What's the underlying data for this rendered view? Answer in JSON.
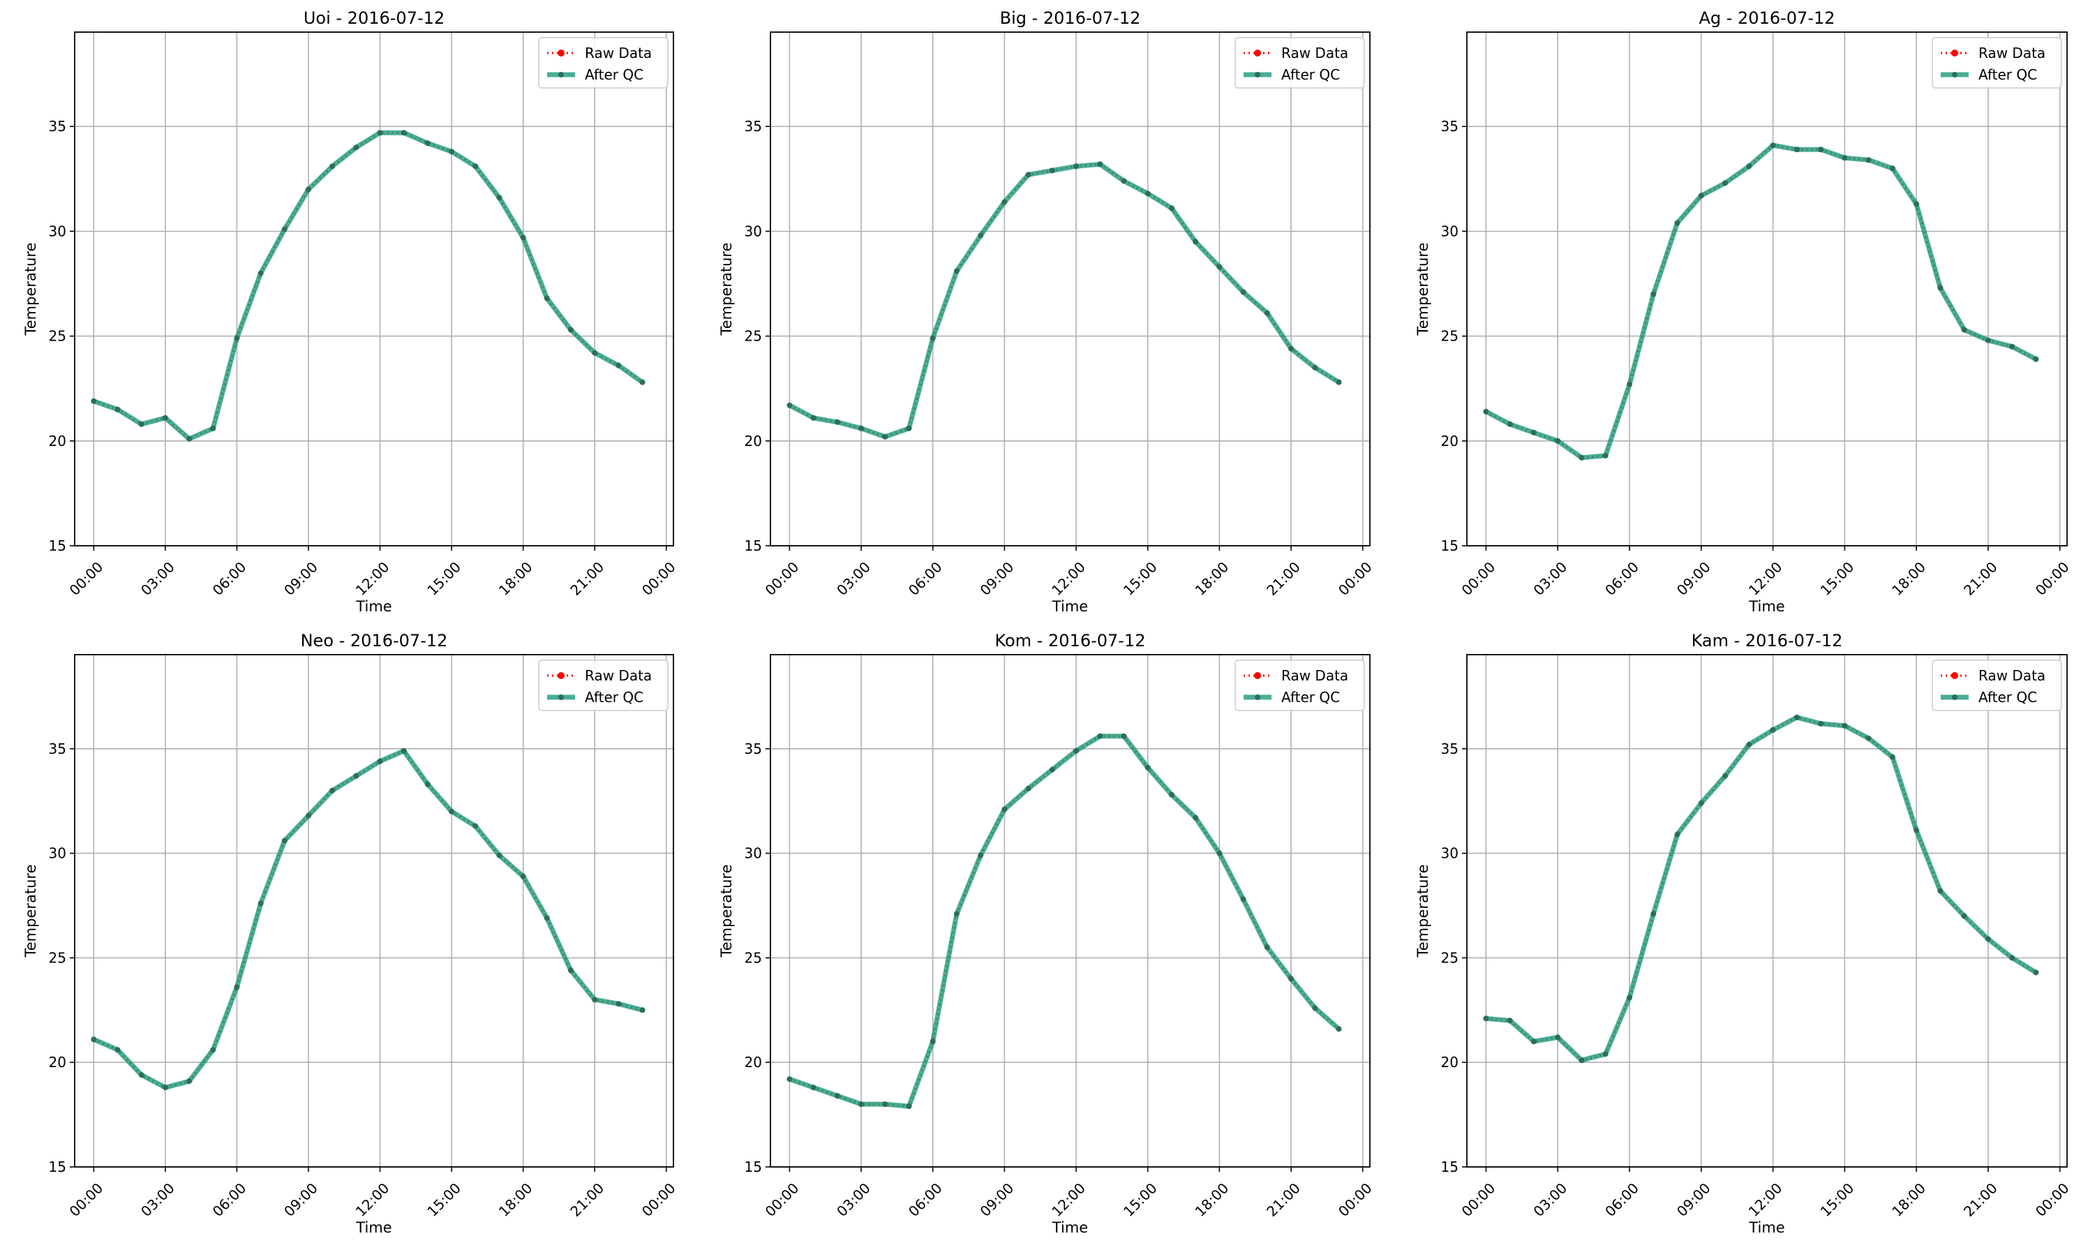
{
  "legend": {
    "raw_label": "Raw Data",
    "qc_label": "After QC"
  },
  "colors": {
    "raw": "#ff0000",
    "qc": "#1a9a7a",
    "qc_marker": "#2c6e5a",
    "grid": "#b0b0b0"
  },
  "chart_data": [
    {
      "type": "line",
      "title": "Uoi - 2016-07-12",
      "xlabel": "Time",
      "ylabel": "Temperature",
      "x": [
        0,
        1,
        2,
        3,
        4,
        5,
        6,
        7,
        8,
        9,
        10,
        11,
        12,
        13,
        14,
        15,
        16,
        17,
        18,
        19,
        20,
        21,
        22,
        23
      ],
      "xticks": [
        "00:00",
        "03:00",
        "06:00",
        "09:00",
        "12:00",
        "15:00",
        "18:00",
        "21:00",
        "00:00"
      ],
      "yticks": [
        "15",
        "20",
        "25",
        "30",
        "35"
      ],
      "ylim": [
        15,
        39.5
      ],
      "xlim": [
        -0.8,
        24.3
      ],
      "grid": true,
      "legend_position": "top-right",
      "series": [
        {
          "name": "Raw Data",
          "values": [
            21.9,
            21.5,
            20.8,
            21.1,
            20.1,
            20.6,
            24.9,
            28.0,
            30.1,
            32.0,
            33.1,
            34.0,
            34.7,
            34.7,
            34.2,
            33.8,
            33.1,
            31.6,
            29.7,
            26.8,
            25.3,
            24.2,
            23.6,
            22.8
          ]
        },
        {
          "name": "After QC",
          "values": [
            21.9,
            21.5,
            20.8,
            21.1,
            20.1,
            20.6,
            24.9,
            28.0,
            30.1,
            32.0,
            33.1,
            34.0,
            34.7,
            34.7,
            34.2,
            33.8,
            33.1,
            31.6,
            29.7,
            26.8,
            25.3,
            24.2,
            23.6,
            22.8
          ]
        }
      ]
    },
    {
      "type": "line",
      "title": "Big - 2016-07-12",
      "xlabel": "Time",
      "ylabel": "Temperature",
      "x": [
        0,
        1,
        2,
        3,
        4,
        5,
        6,
        7,
        8,
        9,
        10,
        11,
        12,
        13,
        14,
        15,
        16,
        17,
        18,
        19,
        20,
        21,
        22,
        23
      ],
      "xticks": [
        "00:00",
        "03:00",
        "06:00",
        "09:00",
        "12:00",
        "15:00",
        "18:00",
        "21:00",
        "00:00"
      ],
      "yticks": [
        "15",
        "20",
        "25",
        "30",
        "35"
      ],
      "ylim": [
        15,
        39.5
      ],
      "xlim": [
        -0.8,
        24.3
      ],
      "grid": true,
      "legend_position": "top-right",
      "series": [
        {
          "name": "Raw Data",
          "values": [
            21.7,
            21.1,
            20.9,
            20.6,
            20.2,
            20.6,
            24.9,
            28.1,
            29.8,
            31.4,
            32.7,
            32.9,
            33.1,
            33.2,
            32.4,
            31.8,
            31.1,
            29.5,
            28.3,
            27.1,
            26.1,
            24.4,
            23.5,
            22.8
          ]
        },
        {
          "name": "After QC",
          "values": [
            21.7,
            21.1,
            20.9,
            20.6,
            20.2,
            20.6,
            24.9,
            28.1,
            29.8,
            31.4,
            32.7,
            32.9,
            33.1,
            33.2,
            32.4,
            31.8,
            31.1,
            29.5,
            28.3,
            27.1,
            26.1,
            24.4,
            23.5,
            22.8
          ]
        }
      ]
    },
    {
      "type": "line",
      "title": "Ag - 2016-07-12",
      "xlabel": "Time",
      "ylabel": "Temperature",
      "x": [
        0,
        1,
        2,
        3,
        4,
        5,
        6,
        7,
        8,
        9,
        10,
        11,
        12,
        13,
        14,
        15,
        16,
        17,
        18,
        19,
        20,
        21,
        22,
        23
      ],
      "xticks": [
        "00:00",
        "03:00",
        "06:00",
        "09:00",
        "12:00",
        "15:00",
        "18:00",
        "21:00",
        "00:00"
      ],
      "yticks": [
        "15",
        "20",
        "25",
        "30",
        "35"
      ],
      "ylim": [
        15,
        39.5
      ],
      "xlim": [
        -0.8,
        24.3
      ],
      "grid": true,
      "legend_position": "top-right",
      "series": [
        {
          "name": "Raw Data",
          "values": [
            21.4,
            20.8,
            20.4,
            20.0,
            19.2,
            19.3,
            22.7,
            27.0,
            30.4,
            31.7,
            32.3,
            33.1,
            34.1,
            33.9,
            33.9,
            33.5,
            33.4,
            33.0,
            31.3,
            27.3,
            25.3,
            24.8,
            24.5,
            23.9
          ]
        },
        {
          "name": "After QC",
          "values": [
            21.4,
            20.8,
            20.4,
            20.0,
            19.2,
            19.3,
            22.7,
            27.0,
            30.4,
            31.7,
            32.3,
            33.1,
            34.1,
            33.9,
            33.9,
            33.5,
            33.4,
            33.0,
            31.3,
            27.3,
            25.3,
            24.8,
            24.5,
            23.9
          ]
        }
      ]
    },
    {
      "type": "line",
      "title": "Neo - 2016-07-12",
      "xlabel": "Time",
      "ylabel": "Temperature",
      "x": [
        0,
        1,
        2,
        3,
        4,
        5,
        6,
        7,
        8,
        9,
        10,
        11,
        12,
        13,
        14,
        15,
        16,
        17,
        18,
        19,
        20,
        21,
        22,
        23
      ],
      "xticks": [
        "00:00",
        "03:00",
        "06:00",
        "09:00",
        "12:00",
        "15:00",
        "18:00",
        "21:00",
        "00:00"
      ],
      "yticks": [
        "15",
        "20",
        "25",
        "30",
        "35"
      ],
      "ylim": [
        15,
        39.5
      ],
      "xlim": [
        -0.8,
        24.3
      ],
      "grid": true,
      "legend_position": "top-right",
      "series": [
        {
          "name": "Raw Data",
          "values": [
            21.1,
            20.6,
            19.4,
            18.8,
            19.1,
            20.6,
            23.6,
            27.6,
            30.6,
            31.8,
            33.0,
            33.7,
            34.4,
            34.9,
            33.3,
            32.0,
            31.3,
            29.9,
            28.9,
            26.9,
            24.4,
            23.0,
            22.8,
            22.5
          ]
        },
        {
          "name": "After QC",
          "values": [
            21.1,
            20.6,
            19.4,
            18.8,
            19.1,
            20.6,
            23.6,
            27.6,
            30.6,
            31.8,
            33.0,
            33.7,
            34.4,
            34.9,
            33.3,
            32.0,
            31.3,
            29.9,
            28.9,
            26.9,
            24.4,
            23.0,
            22.8,
            22.5
          ]
        }
      ]
    },
    {
      "type": "line",
      "title": "Kom - 2016-07-12",
      "xlabel": "Time",
      "ylabel": "Temperature",
      "x": [
        0,
        1,
        2,
        3,
        4,
        5,
        6,
        7,
        8,
        9,
        10,
        11,
        12,
        13,
        14,
        15,
        16,
        17,
        18,
        19,
        20,
        21,
        22,
        23
      ],
      "xticks": [
        "00:00",
        "03:00",
        "06:00",
        "09:00",
        "12:00",
        "15:00",
        "18:00",
        "21:00",
        "00:00"
      ],
      "yticks": [
        "15",
        "20",
        "25",
        "30",
        "35"
      ],
      "ylim": [
        15,
        39.5
      ],
      "xlim": [
        -0.8,
        24.3
      ],
      "grid": true,
      "legend_position": "top-right",
      "series": [
        {
          "name": "Raw Data",
          "values": [
            19.2,
            18.8,
            18.4,
            18.0,
            18.0,
            17.9,
            21.0,
            27.1,
            29.9,
            32.1,
            33.1,
            34.0,
            34.9,
            35.6,
            35.6,
            34.1,
            32.8,
            31.7,
            30.0,
            27.8,
            25.5,
            24.0,
            22.6,
            21.6
          ]
        },
        {
          "name": "After QC",
          "values": [
            19.2,
            18.8,
            18.4,
            18.0,
            18.0,
            17.9,
            21.0,
            27.1,
            29.9,
            32.1,
            33.1,
            34.0,
            34.9,
            35.6,
            35.6,
            34.1,
            32.8,
            31.7,
            30.0,
            27.8,
            25.5,
            24.0,
            22.6,
            21.6
          ]
        }
      ]
    },
    {
      "type": "line",
      "title": "Kam - 2016-07-12",
      "xlabel": "Time",
      "ylabel": "Temperature",
      "x": [
        0,
        1,
        2,
        3,
        4,
        5,
        6,
        7,
        8,
        9,
        10,
        11,
        12,
        13,
        14,
        15,
        16,
        17,
        18,
        19,
        20,
        21,
        22,
        23
      ],
      "xticks": [
        "00:00",
        "03:00",
        "06:00",
        "09:00",
        "12:00",
        "15:00",
        "18:00",
        "21:00",
        "00:00"
      ],
      "yticks": [
        "15",
        "20",
        "25",
        "30",
        "35"
      ],
      "ylim": [
        15,
        39.5
      ],
      "xlim": [
        -0.8,
        24.3
      ],
      "grid": true,
      "legend_position": "top-right",
      "series": [
        {
          "name": "Raw Data",
          "values": [
            22.1,
            22.0,
            21.0,
            21.2,
            20.1,
            20.4,
            23.1,
            27.1,
            30.9,
            32.4,
            33.7,
            35.2,
            35.9,
            36.5,
            36.2,
            36.1,
            35.5,
            34.6,
            31.1,
            28.2,
            27.0,
            25.9,
            25.0,
            24.3
          ]
        },
        {
          "name": "After QC",
          "values": [
            22.1,
            22.0,
            21.0,
            21.2,
            20.1,
            20.4,
            23.1,
            27.1,
            30.9,
            32.4,
            33.7,
            35.2,
            35.9,
            36.5,
            36.2,
            36.1,
            35.5,
            34.6,
            31.1,
            28.2,
            27.0,
            25.9,
            25.0,
            24.3
          ]
        }
      ]
    }
  ]
}
